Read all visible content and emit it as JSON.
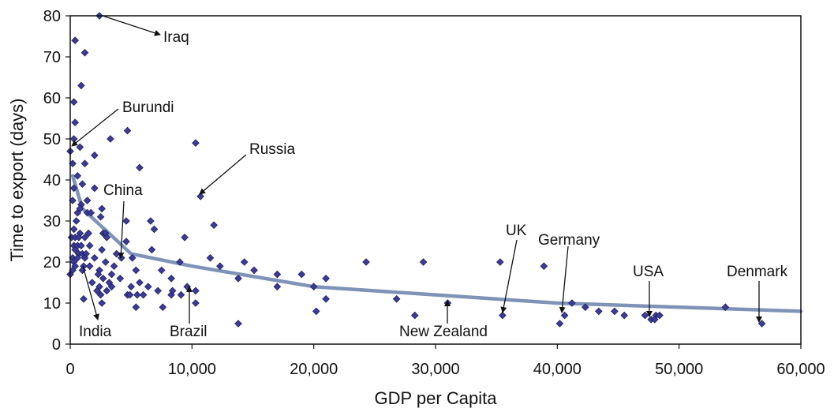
{
  "chart_data": {
    "type": "scatter",
    "xlabel": "GDP per Capita",
    "ylabel": "Time to export (days)",
    "xlim": [
      0,
      60000
    ],
    "ylim": [
      0,
      80
    ],
    "xticks": [
      0,
      10000,
      20000,
      30000,
      40000,
      50000,
      60000
    ],
    "xtick_labels": [
      "0",
      "10,000",
      "20,000",
      "30,000",
      "40,000",
      "50,000",
      "60,000"
    ],
    "yticks": [
      0,
      10,
      20,
      30,
      40,
      50,
      60,
      70,
      80
    ],
    "ytick_labels": [
      "0",
      "10",
      "20",
      "30",
      "40",
      "50",
      "60",
      "70",
      "80"
    ],
    "grid": false,
    "marker_color": "#3b3b9a",
    "trend_color": "#7f93b8",
    "points": [
      [
        2400,
        80
      ],
      [
        400,
        74
      ],
      [
        1200,
        71
      ],
      [
        900,
        63
      ],
      [
        300,
        59
      ],
      [
        400,
        54
      ],
      [
        4700,
        52
      ],
      [
        300,
        50
      ],
      [
        3300,
        50
      ],
      [
        10300,
        49
      ],
      [
        0,
        47
      ],
      [
        800,
        48
      ],
      [
        2000,
        46
      ],
      [
        200,
        44
      ],
      [
        1200,
        44
      ],
      [
        600,
        41
      ],
      [
        5700,
        43
      ],
      [
        1000,
        39
      ],
      [
        300,
        38
      ],
      [
        2000,
        38
      ],
      [
        200,
        35
      ],
      [
        1400,
        35
      ],
      [
        900,
        34
      ],
      [
        800,
        33
      ],
      [
        2600,
        33
      ],
      [
        600,
        32
      ],
      [
        1400,
        32
      ],
      [
        1700,
        32
      ],
      [
        2500,
        31
      ],
      [
        500,
        30
      ],
      [
        4600,
        30
      ],
      [
        6600,
        30
      ],
      [
        11800,
        29
      ],
      [
        300,
        28
      ],
      [
        2700,
        27
      ],
      [
        6900,
        28
      ],
      [
        800,
        27
      ],
      [
        1500,
        27
      ],
      [
        100,
        26
      ],
      [
        400,
        26
      ],
      [
        700,
        26
      ],
      [
        1200,
        26
      ],
      [
        2900,
        27
      ],
      [
        3000,
        26
      ],
      [
        9400,
        26
      ],
      [
        10700,
        36
      ],
      [
        4600,
        25
      ],
      [
        300,
        24
      ],
      [
        600,
        24
      ],
      [
        900,
        24
      ],
      [
        1600,
        24
      ],
      [
        2600,
        23
      ],
      [
        6700,
        23
      ],
      [
        400,
        23
      ],
      [
        700,
        22
      ],
      [
        1000,
        22
      ],
      [
        1300,
        22
      ],
      [
        3800,
        22
      ],
      [
        4200,
        21
      ],
      [
        5100,
        21
      ],
      [
        200,
        21
      ],
      [
        600,
        21
      ],
      [
        1200,
        21
      ],
      [
        2000,
        21
      ],
      [
        9000,
        20
      ],
      [
        11500,
        21
      ],
      [
        14300,
        20
      ],
      [
        24300,
        20
      ],
      [
        29000,
        20
      ],
      [
        35300,
        20
      ],
      [
        300,
        20
      ],
      [
        2900,
        20
      ],
      [
        3600,
        19
      ],
      [
        400,
        19
      ],
      [
        1100,
        19
      ],
      [
        1600,
        19
      ],
      [
        12300,
        19
      ],
      [
        15100,
        18
      ],
      [
        38900,
        19
      ],
      [
        200,
        18
      ],
      [
        1000,
        18
      ],
      [
        2400,
        18
      ],
      [
        5400,
        18
      ],
      [
        7500,
        18
      ],
      [
        13800,
        16
      ],
      [
        17000,
        17
      ],
      [
        19000,
        17
      ],
      [
        2300,
        17
      ],
      [
        3400,
        17
      ],
      [
        0,
        17
      ],
      [
        2700,
        16
      ],
      [
        4100,
        16
      ],
      [
        8300,
        16
      ],
      [
        21000,
        16
      ],
      [
        17000,
        14
      ],
      [
        1800,
        15
      ],
      [
        3200,
        15
      ],
      [
        5700,
        15
      ],
      [
        9600,
        14
      ],
      [
        10300,
        13
      ],
      [
        20000,
        14
      ],
      [
        2400,
        14
      ],
      [
        3400,
        14
      ],
      [
        5000,
        14
      ],
      [
        6400,
        14
      ],
      [
        2200,
        13
      ],
      [
        3000,
        13
      ],
      [
        7200,
        13
      ],
      [
        8300,
        12
      ],
      [
        9100,
        12
      ],
      [
        4700,
        12
      ],
      [
        5500,
        12
      ],
      [
        6000,
        12
      ],
      [
        8400,
        13
      ],
      [
        2500,
        12
      ],
      [
        1100,
        11
      ],
      [
        4900,
        12
      ],
      [
        21000,
        11
      ],
      [
        26800,
        11
      ],
      [
        31000,
        10
      ],
      [
        41200,
        10
      ],
      [
        5400,
        9
      ],
      [
        7600,
        9
      ],
      [
        10300,
        10
      ],
      [
        20200,
        8
      ],
      [
        42300,
        9
      ],
      [
        43400,
        8
      ],
      [
        44700,
        8
      ],
      [
        2600,
        10
      ],
      [
        45500,
        7
      ],
      [
        28300,
        7
      ],
      [
        35500,
        7
      ],
      [
        40600,
        7
      ],
      [
        47200,
        7
      ],
      [
        48100,
        7
      ],
      [
        48400,
        7
      ],
      [
        47700,
        6
      ],
      [
        48000,
        6
      ],
      [
        40200,
        5
      ],
      [
        13800,
        5
      ],
      [
        53800,
        9
      ],
      [
        56800,
        5
      ]
    ],
    "trend": {
      "type": "log",
      "points": [
        [
          200,
          41
        ],
        [
          1000,
          33
        ],
        [
          5000,
          22
        ],
        [
          10000,
          19
        ],
        [
          20000,
          14
        ],
        [
          30000,
          12
        ],
        [
          40000,
          10
        ],
        [
          50000,
          9
        ],
        [
          60000,
          8
        ]
      ]
    },
    "annotations": [
      {
        "label": "Iraq"
      },
      {
        "label": "Burundi"
      },
      {
        "label": "Russia"
      },
      {
        "label": "China"
      },
      {
        "label": "India"
      },
      {
        "label": "Brazil"
      },
      {
        "label": "New Zealand"
      },
      {
        "label": "UK"
      },
      {
        "label": "Germany"
      },
      {
        "label": "USA"
      },
      {
        "label": "Denmark"
      }
    ]
  }
}
